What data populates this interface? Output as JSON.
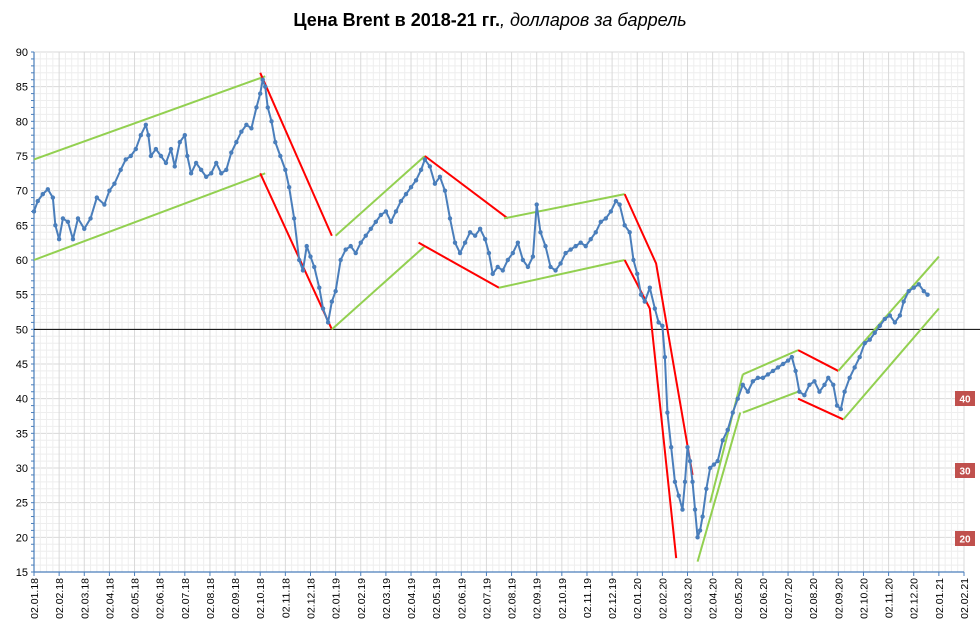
{
  "chart_data": {
    "type": "line",
    "title_bold": "Цена Brent в 2018-21 гг.",
    "title_italic": ", долларов за баррель",
    "ylim": [
      15,
      90
    ],
    "y_ticks": [
      15,
      20,
      25,
      30,
      35,
      40,
      45,
      50,
      55,
      60,
      65,
      70,
      75,
      80,
      85,
      90
    ],
    "x_ticks": [
      "02.01.18",
      "02.02.18",
      "02.03.18",
      "02.04.18",
      "02.05.18",
      "02.06.18",
      "02.07.18",
      "02.08.18",
      "02.09.18",
      "02.10.18",
      "02.11.18",
      "02.12.18",
      "02.01.19",
      "02.02.19",
      "02.03.19",
      "02.04.19",
      "02.05.19",
      "02.06.19",
      "02.07.19",
      "02.08.19",
      "02.09.19",
      "02.10.19",
      "02.11.19",
      "02.12.19",
      "02.01.20",
      "02.02.20",
      "02.03.20",
      "02.04.20",
      "02.05.20",
      "02.06.20",
      "02.07.20",
      "02.08.20",
      "02.09.20",
      "02.10.20",
      "02.11.20",
      "02.12.20",
      "02.01.21",
      "02.02.21"
    ],
    "grid": true,
    "reference_line": 50,
    "series": [
      {
        "color": "#4a7ebb",
        "points": [
          [
            0,
            67
          ],
          [
            0.15,
            68.5
          ],
          [
            0.35,
            69.5
          ],
          [
            0.55,
            70.2
          ],
          [
            0.75,
            69
          ],
          [
            0.85,
            65
          ],
          [
            1.0,
            63
          ],
          [
            1.15,
            66
          ],
          [
            1.35,
            65.5
          ],
          [
            1.55,
            63
          ],
          [
            1.75,
            66
          ],
          [
            2.0,
            64.5
          ],
          [
            2.25,
            66
          ],
          [
            2.5,
            69
          ],
          [
            2.8,
            68
          ],
          [
            3.0,
            70
          ],
          [
            3.2,
            71
          ],
          [
            3.45,
            73
          ],
          [
            3.65,
            74.5
          ],
          [
            3.85,
            75
          ],
          [
            4.05,
            76
          ],
          [
            4.25,
            78
          ],
          [
            4.45,
            79.5
          ],
          [
            4.55,
            78
          ],
          [
            4.65,
            75
          ],
          [
            4.85,
            76
          ],
          [
            5.05,
            75
          ],
          [
            5.25,
            74
          ],
          [
            5.45,
            76
          ],
          [
            5.6,
            73.5
          ],
          [
            5.8,
            77
          ],
          [
            6.0,
            78
          ],
          [
            6.1,
            75
          ],
          [
            6.25,
            72.5
          ],
          [
            6.45,
            74
          ],
          [
            6.65,
            73
          ],
          [
            6.85,
            72
          ],
          [
            7.05,
            72.5
          ],
          [
            7.25,
            74
          ],
          [
            7.45,
            72.5
          ],
          [
            7.65,
            73
          ],
          [
            7.85,
            75.5
          ],
          [
            8.05,
            77
          ],
          [
            8.25,
            78.5
          ],
          [
            8.45,
            79.5
          ],
          [
            8.65,
            79
          ],
          [
            8.85,
            82
          ],
          [
            9.0,
            84
          ],
          [
            9.1,
            86
          ],
          [
            9.2,
            85
          ],
          [
            9.3,
            82
          ],
          [
            9.45,
            80
          ],
          [
            9.6,
            77
          ],
          [
            9.8,
            75
          ],
          [
            10.0,
            73
          ],
          [
            10.15,
            70.5
          ],
          [
            10.35,
            66
          ],
          [
            10.55,
            60
          ],
          [
            10.7,
            58.5
          ],
          [
            10.85,
            62
          ],
          [
            11.0,
            60.5
          ],
          [
            11.15,
            59
          ],
          [
            11.35,
            56
          ],
          [
            11.5,
            53
          ],
          [
            11.7,
            51
          ],
          [
            11.85,
            54
          ],
          [
            12.0,
            55.5
          ],
          [
            12.2,
            60
          ],
          [
            12.4,
            61.5
          ],
          [
            12.6,
            62
          ],
          [
            12.8,
            61
          ],
          [
            13.0,
            62.5
          ],
          [
            13.2,
            63.5
          ],
          [
            13.4,
            64.5
          ],
          [
            13.6,
            65.5
          ],
          [
            13.8,
            66.5
          ],
          [
            14.0,
            67
          ],
          [
            14.2,
            65.5
          ],
          [
            14.4,
            67
          ],
          [
            14.6,
            68.5
          ],
          [
            14.8,
            69.5
          ],
          [
            15.0,
            70.5
          ],
          [
            15.2,
            71.5
          ],
          [
            15.4,
            73
          ],
          [
            15.55,
            74.5
          ],
          [
            15.75,
            73.5
          ],
          [
            15.95,
            71
          ],
          [
            16.15,
            72
          ],
          [
            16.35,
            70
          ],
          [
            16.55,
            66
          ],
          [
            16.75,
            62.5
          ],
          [
            16.95,
            61
          ],
          [
            17.15,
            62.5
          ],
          [
            17.35,
            64
          ],
          [
            17.55,
            63.5
          ],
          [
            17.75,
            64.5
          ],
          [
            17.95,
            63
          ],
          [
            18.1,
            61
          ],
          [
            18.25,
            58
          ],
          [
            18.45,
            59
          ],
          [
            18.65,
            58.5
          ],
          [
            18.85,
            60
          ],
          [
            19.05,
            61
          ],
          [
            19.25,
            62.5
          ],
          [
            19.45,
            60
          ],
          [
            19.65,
            59
          ],
          [
            19.85,
            60.5
          ],
          [
            20.0,
            68
          ],
          [
            20.15,
            64
          ],
          [
            20.35,
            62
          ],
          [
            20.55,
            59
          ],
          [
            20.75,
            58.5
          ],
          [
            20.95,
            59.5
          ],
          [
            21.15,
            61
          ],
          [
            21.35,
            61.5
          ],
          [
            21.55,
            62
          ],
          [
            21.75,
            62.5
          ],
          [
            21.95,
            62
          ],
          [
            22.15,
            63
          ],
          [
            22.35,
            64
          ],
          [
            22.55,
            65.5
          ],
          [
            22.75,
            66
          ],
          [
            22.95,
            67
          ],
          [
            23.15,
            68.5
          ],
          [
            23.3,
            68
          ],
          [
            23.5,
            65
          ],
          [
            23.7,
            64
          ],
          [
            23.85,
            60
          ],
          [
            24.0,
            58
          ],
          [
            24.15,
            55
          ],
          [
            24.3,
            54
          ],
          [
            24.5,
            56
          ],
          [
            24.7,
            53
          ],
          [
            24.85,
            51
          ],
          [
            25.0,
            50.5
          ],
          [
            25.1,
            46
          ],
          [
            25.2,
            38
          ],
          [
            25.35,
            33
          ],
          [
            25.5,
            28
          ],
          [
            25.65,
            26
          ],
          [
            25.8,
            24
          ],
          [
            25.9,
            28
          ],
          [
            26.0,
            33
          ],
          [
            26.1,
            31
          ],
          [
            26.2,
            28
          ],
          [
            26.3,
            24
          ],
          [
            26.4,
            20
          ],
          [
            26.5,
            21
          ],
          [
            26.6,
            23
          ],
          [
            26.75,
            27
          ],
          [
            26.9,
            30
          ],
          [
            27.05,
            30.5
          ],
          [
            27.2,
            31
          ],
          [
            27.4,
            34
          ],
          [
            27.6,
            35.5
          ],
          [
            27.8,
            38
          ],
          [
            28.0,
            40
          ],
          [
            28.2,
            42
          ],
          [
            28.4,
            41
          ],
          [
            28.6,
            42.5
          ],
          [
            28.8,
            43
          ],
          [
            29.0,
            43
          ],
          [
            29.2,
            43.5
          ],
          [
            29.4,
            44
          ],
          [
            29.6,
            44.5
          ],
          [
            29.8,
            45
          ],
          [
            30.0,
            45.5
          ],
          [
            30.15,
            46
          ],
          [
            30.3,
            44
          ],
          [
            30.45,
            41
          ],
          [
            30.65,
            40.5
          ],
          [
            30.85,
            42
          ],
          [
            31.05,
            42.5
          ],
          [
            31.25,
            41
          ],
          [
            31.45,
            42
          ],
          [
            31.6,
            43
          ],
          [
            31.8,
            42
          ],
          [
            31.95,
            39
          ],
          [
            32.1,
            38.5
          ],
          [
            32.25,
            41
          ],
          [
            32.45,
            43
          ],
          [
            32.65,
            44.5
          ],
          [
            32.85,
            46
          ],
          [
            33.05,
            48
          ],
          [
            33.25,
            48.5
          ],
          [
            33.45,
            49.5
          ],
          [
            33.65,
            50.5
          ],
          [
            33.85,
            51.5
          ],
          [
            34.05,
            52
          ],
          [
            34.25,
            51
          ],
          [
            34.45,
            52
          ],
          [
            34.6,
            54
          ],
          [
            34.8,
            55.5
          ],
          [
            35.0,
            56
          ],
          [
            35.2,
            56.5
          ],
          [
            35.4,
            55.5
          ],
          [
            35.55,
            55
          ]
        ]
      }
    ],
    "trend_lines": [
      {
        "color": "#92d050",
        "points": [
          [
            0,
            74.5
          ],
          [
            9.2,
            86.5
          ]
        ]
      },
      {
        "color": "#92d050",
        "points": [
          [
            0,
            60
          ],
          [
            9.2,
            72.5
          ]
        ]
      },
      {
        "color": "#ff0000",
        "points": [
          [
            9.0,
            87
          ],
          [
            11.85,
            63.5
          ]
        ]
      },
      {
        "color": "#ff0000",
        "points": [
          [
            9.0,
            72.5
          ],
          [
            11.85,
            50
          ]
        ]
      },
      {
        "color": "#92d050",
        "points": [
          [
            11.85,
            50
          ],
          [
            15.55,
            62
          ]
        ]
      },
      {
        "color": "#92d050",
        "points": [
          [
            12.0,
            63.5
          ],
          [
            15.55,
            75
          ]
        ]
      },
      {
        "color": "#ff0000",
        "points": [
          [
            15.55,
            75
          ],
          [
            18.85,
            66
          ]
        ]
      },
      {
        "color": "#ff0000",
        "points": [
          [
            15.3,
            62.5
          ],
          [
            18.5,
            56
          ]
        ]
      },
      {
        "color": "#92d050",
        "points": [
          [
            18.5,
            56
          ],
          [
            23.5,
            60
          ]
        ]
      },
      {
        "color": "#92d050",
        "points": [
          [
            18.7,
            66
          ],
          [
            23.5,
            69.5
          ]
        ]
      },
      {
        "color": "#ff0000",
        "points": [
          [
            23.5,
            69.5
          ],
          [
            24.75,
            59.5
          ],
          [
            26.2,
            29
          ]
        ]
      },
      {
        "color": "#ff0000",
        "points": [
          [
            23.5,
            60
          ],
          [
            24.5,
            53
          ],
          [
            25.55,
            17
          ]
        ]
      },
      {
        "color": "#92d050",
        "points": [
          [
            26.4,
            16.5
          ],
          [
            28.1,
            38
          ]
        ]
      },
      {
        "color": "#92d050",
        "points": [
          [
            26.9,
            25
          ],
          [
            28.2,
            43.5
          ]
        ]
      },
      {
        "color": "#92d050",
        "points": [
          [
            28.2,
            43.5
          ],
          [
            30.4,
            47
          ]
        ]
      },
      {
        "color": "#92d050",
        "points": [
          [
            28.2,
            38
          ],
          [
            30.4,
            41
          ]
        ]
      },
      {
        "color": "#ff0000",
        "points": [
          [
            30.4,
            47
          ],
          [
            32.0,
            44
          ]
        ]
      },
      {
        "color": "#ff0000",
        "points": [
          [
            30.4,
            40
          ],
          [
            32.2,
            37
          ]
        ]
      },
      {
        "color": "#92d050",
        "points": [
          [
            32.2,
            37
          ],
          [
            36.0,
            53
          ]
        ]
      },
      {
        "color": "#92d050",
        "points": [
          [
            32.0,
            44
          ],
          [
            36.0,
            60.5
          ]
        ]
      }
    ],
    "side_badges": [
      "40",
      "30",
      "20"
    ],
    "badge_color": "#c0504d"
  }
}
